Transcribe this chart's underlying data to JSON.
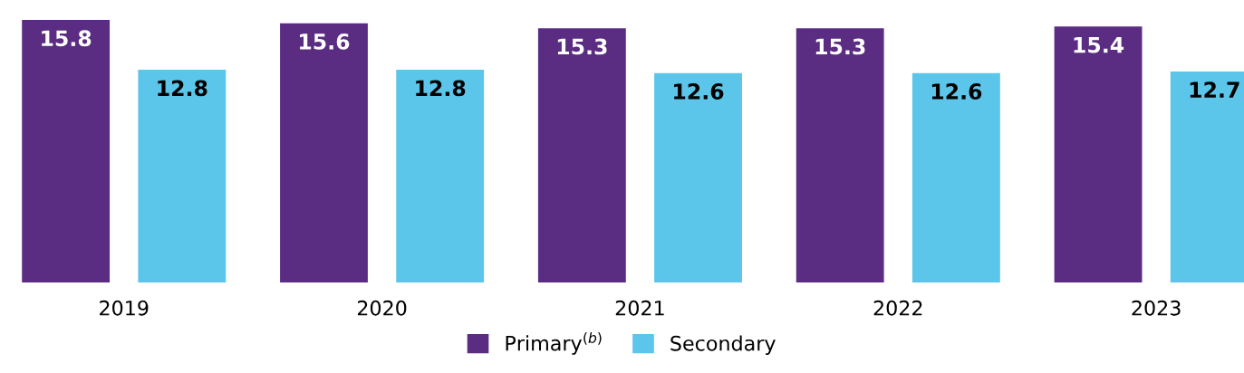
{
  "chart_data": {
    "type": "bar",
    "categories": [
      "2019",
      "2020",
      "2021",
      "2022",
      "2023"
    ],
    "series": [
      {
        "name": "Primary$^{(b)}$",
        "color": "#5a2d82",
        "values": [
          15.8,
          15.6,
          15.3,
          15.3,
          15.4
        ]
      },
      {
        "name": "Secondary",
        "color": "#5bc5ea",
        "values": [
          12.8,
          12.8,
          12.6,
          12.6,
          12.7
        ]
      }
    ],
    "data_labels": true,
    "legend": "bottom",
    "grid": false
  }
}
